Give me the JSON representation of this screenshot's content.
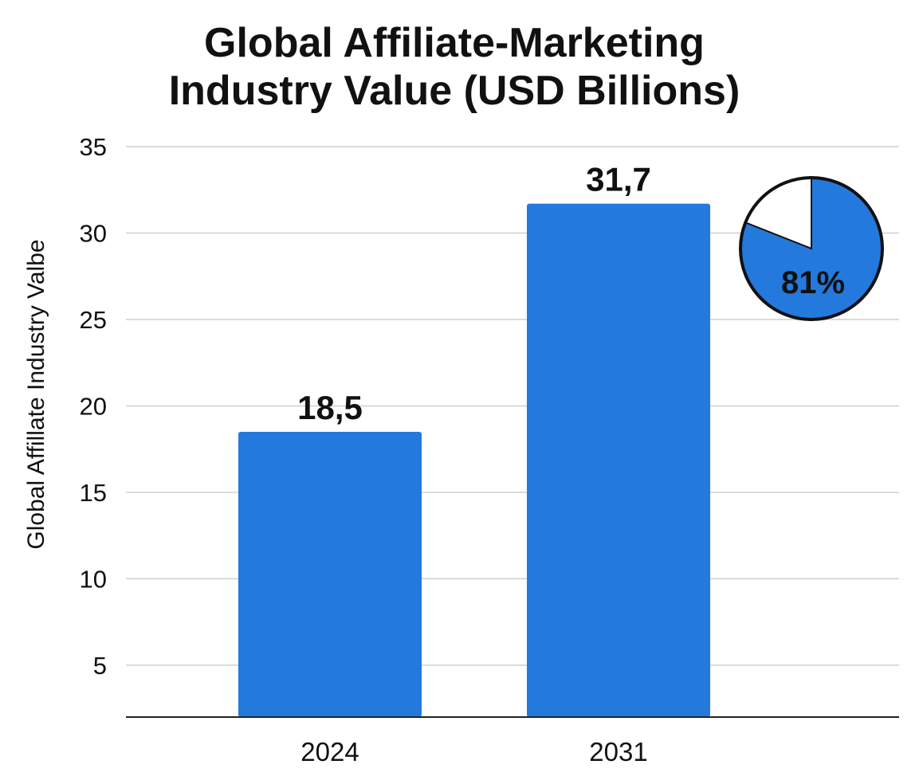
{
  "chart_data": {
    "type": "bar",
    "title_lines": [
      "Global Affiliate-Marketing",
      "Industry Value (USD Billions)"
    ],
    "ylabel": "Global Affillate Industry Valbe",
    "xlabel": "",
    "categories": [
      "2024",
      "2031"
    ],
    "values": [
      18.5,
      31.7
    ],
    "value_labels": [
      "18,5",
      "31,7"
    ],
    "yticks": [
      5,
      10,
      15,
      20,
      25,
      30,
      35
    ],
    "ylim": [
      2,
      35
    ],
    "grid": true,
    "bar_color": "#2479DC",
    "inset_pie": {
      "value_percent": 81,
      "label": "81%",
      "fill_color": "#2479DC",
      "remainder_color": "#ffffff"
    }
  }
}
